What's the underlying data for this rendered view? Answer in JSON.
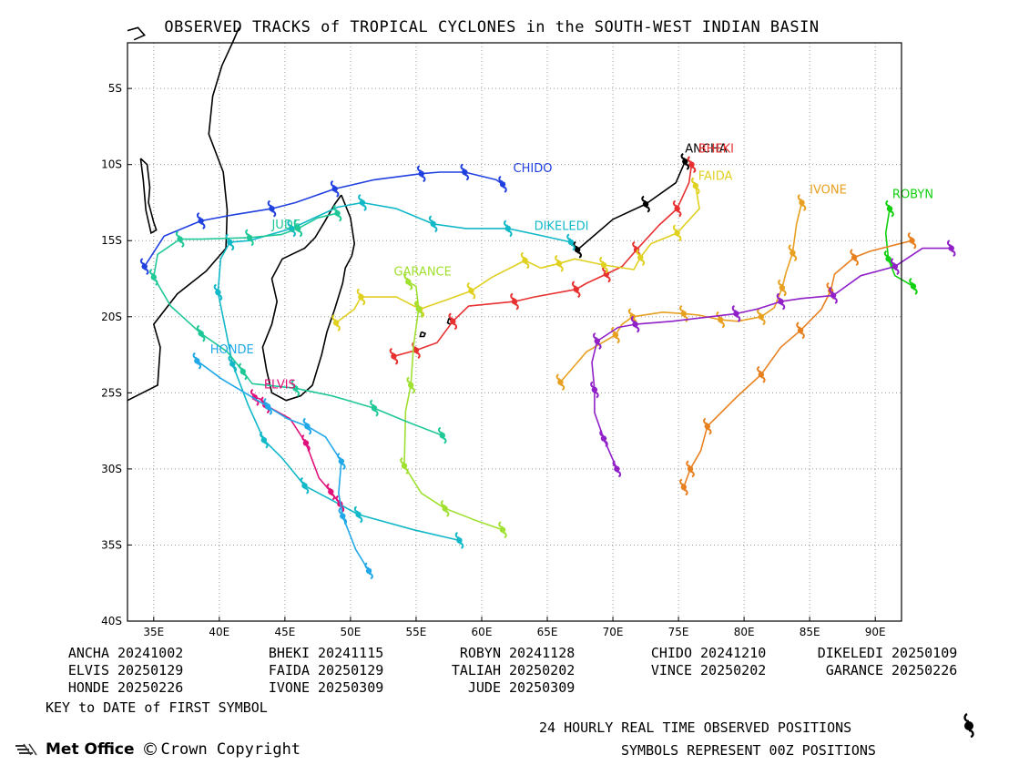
{
  "title": "OBSERVED TRACKS of TROPICAL CYCLONES in the SOUTH-WEST INDIAN BASIN",
  "map": {
    "lon_range": [
      33,
      92
    ],
    "lat_range": [
      -40,
      -2
    ],
    "x_ticks": [
      "35E",
      "40E",
      "45E",
      "50E",
      "55E",
      "60E",
      "65E",
      "70E",
      "75E",
      "80E",
      "85E",
      "90E"
    ],
    "y_ticks": [
      "5S",
      "10S",
      "15S",
      "20S",
      "25S",
      "30S",
      "35S",
      "40S"
    ],
    "grid": true,
    "coastline_color": "#000000"
  },
  "storms": [
    {
      "name": "ANCHA",
      "color": "#000000",
      "label": "ANCHA",
      "track": [
        [
          75.5,
          -9.8
        ],
        [
          74.8,
          -11.2
        ],
        [
          72.5,
          -12.6
        ],
        [
          70.0,
          -13.6
        ],
        [
          67.3,
          -15.6
        ]
      ]
    },
    {
      "name": "BHEKI",
      "color": "#e83030",
      "label": "BHEKI",
      "track": [
        [
          76.0,
          -10.0
        ],
        [
          75.8,
          -11.2
        ],
        [
          74.9,
          -12.9
        ],
        [
          73.5,
          -14.0
        ],
        [
          71.8,
          -15.6
        ],
        [
          70.7,
          -16.7
        ],
        [
          69.5,
          -17.2
        ],
        [
          68.0,
          -17.8
        ],
        [
          67.2,
          -18.2
        ],
        [
          64.0,
          -18.7
        ],
        [
          62.5,
          -19.0
        ],
        [
          59.0,
          -19.3
        ],
        [
          57.8,
          -20.3
        ],
        [
          56.6,
          -21.7
        ],
        [
          55.0,
          -22.2
        ],
        [
          53.3,
          -22.6
        ]
      ]
    },
    {
      "name": "ROBYN",
      "color": "#10d010",
      "label": "ROBYN",
      "track": [
        [
          91.1,
          -12.9
        ],
        [
          90.8,
          -14.5
        ],
        [
          91.0,
          -16.2
        ],
        [
          91.5,
          -17.3
        ],
        [
          92.9,
          -18.0
        ]
      ]
    },
    {
      "name": "CHIDO",
      "color": "#2040e0",
      "label": "CHIDO",
      "track": [
        [
          61.6,
          -11.3
        ],
        [
          61.1,
          -11.0
        ],
        [
          58.7,
          -10.5
        ],
        [
          56.8,
          -10.5
        ],
        [
          55.4,
          -10.6
        ],
        [
          51.8,
          -11.0
        ],
        [
          48.8,
          -11.6
        ],
        [
          45.8,
          -12.5
        ],
        [
          44.0,
          -12.9
        ],
        [
          41.1,
          -13.3
        ],
        [
          38.6,
          -13.7
        ],
        [
          35.8,
          -14.7
        ],
        [
          34.3,
          -16.7
        ]
      ]
    },
    {
      "name": "DIKELEDI",
      "color": "#10b8c8",
      "label": "DIKELEDI",
      "track": [
        [
          66.8,
          -15.1
        ],
        [
          64.2,
          -14.6
        ],
        [
          62.0,
          -14.2
        ],
        [
          58.8,
          -14.2
        ],
        [
          56.3,
          -13.9
        ],
        [
          53.5,
          -12.9
        ],
        [
          50.9,
          -12.5
        ],
        [
          49.0,
          -12.8
        ],
        [
          45.5,
          -14.2
        ],
        [
          42.3,
          -15.0
        ],
        [
          40.8,
          -15.1
        ],
        [
          40.1,
          -16.2
        ],
        [
          39.9,
          -18.4
        ],
        [
          40.4,
          -20.5
        ],
        [
          41.0,
          -23.1
        ],
        [
          42.2,
          -25.8
        ],
        [
          43.4,
          -28.1
        ],
        [
          44.8,
          -29.3
        ],
        [
          46.5,
          -31.1
        ],
        [
          48.9,
          -32.2
        ],
        [
          50.6,
          -33.0
        ],
        [
          54.8,
          -34.0
        ],
        [
          58.3,
          -34.7
        ]
      ]
    },
    {
      "name": "ELVIS",
      "color": "#e0107a",
      "label": "ELVIS",
      "track": [
        [
          42.7,
          -25.3
        ],
        [
          43.1,
          -25.4
        ],
        [
          43.5,
          -25.8
        ],
        [
          45.4,
          -26.7
        ],
        [
          46.6,
          -28.3
        ],
        [
          47.6,
          -30.6
        ],
        [
          48.5,
          -31.5
        ],
        [
          49.2,
          -32.3
        ]
      ]
    },
    {
      "name": "FAIDA",
      "color": "#e0d020",
      "label": "FAIDA",
      "track": [
        [
          76.3,
          -11.4
        ],
        [
          76.6,
          -12.9
        ],
        [
          74.9,
          -14.5
        ],
        [
          72.9,
          -15.2
        ],
        [
          72.1,
          -16.1
        ],
        [
          71.6,
          -16.9
        ],
        [
          69.3,
          -16.6
        ],
        [
          67.1,
          -16.2
        ],
        [
          65.9,
          -16.5
        ],
        [
          64.5,
          -16.8
        ],
        [
          63.3,
          -16.3
        ],
        [
          60.8,
          -17.4
        ],
        [
          59.2,
          -18.3
        ],
        [
          57.3,
          -18.9
        ],
        [
          55.3,
          -19.5
        ],
        [
          53.5,
          -18.7
        ],
        [
          50.8,
          -18.7
        ],
        [
          50.3,
          -19.5
        ],
        [
          48.9,
          -20.4
        ]
      ]
    },
    {
      "name": "TALIAH",
      "color": "#e0d020",
      "label": "",
      "track": []
    },
    {
      "name": "VINCE",
      "color": "#e88020",
      "label": "",
      "track": [
        [
          92.8,
          -15.0
        ],
        [
          89.6,
          -15.7
        ],
        [
          88.4,
          -16.1
        ],
        [
          86.9,
          -17.2
        ],
        [
          86.6,
          -18.3
        ],
        [
          85.9,
          -19.5
        ],
        [
          84.3,
          -20.9
        ],
        [
          82.8,
          -22.0
        ],
        [
          81.3,
          -23.8
        ],
        [
          79.4,
          -25.3
        ],
        [
          77.2,
          -27.2
        ],
        [
          76.7,
          -28.8
        ],
        [
          75.9,
          -30.0
        ],
        [
          75.4,
          -31.2
        ]
      ]
    },
    {
      "name": "GARANCE",
      "color": "#a0e030",
      "label": "GARANCE",
      "track": [
        [
          54.4,
          -17.7
        ],
        [
          55.0,
          -18.0
        ],
        [
          55.2,
          -19.5
        ],
        [
          54.8,
          -21.9
        ],
        [
          54.6,
          -24.5
        ],
        [
          54.2,
          -26.2
        ],
        [
          54.1,
          -29.8
        ],
        [
          55.4,
          -31.6
        ],
        [
          57.2,
          -32.6
        ],
        [
          59.6,
          -33.4
        ],
        [
          61.6,
          -34.0
        ]
      ]
    },
    {
      "name": "HONDE",
      "color": "#20a8e8",
      "label": "HONDE",
      "track": [
        [
          38.3,
          -22.9
        ],
        [
          40.2,
          -24.1
        ],
        [
          43.7,
          -25.9
        ],
        [
          45.2,
          -26.7
        ],
        [
          46.7,
          -27.2
        ],
        [
          48.1,
          -27.9
        ],
        [
          49.3,
          -29.5
        ],
        [
          49.1,
          -31.6
        ],
        [
          49.4,
          -33.1
        ],
        [
          50.4,
          -35.3
        ],
        [
          51.4,
          -36.7
        ]
      ]
    },
    {
      "name": "IVONE",
      "color": "#e8a020",
      "label": "IVONE",
      "track": [
        [
          84.4,
          -12.5
        ],
        [
          84.0,
          -13.9
        ],
        [
          83.7,
          -15.8
        ],
        [
          83.2,
          -17.1
        ],
        [
          82.9,
          -18.1
        ],
        [
          82.3,
          -19.4
        ],
        [
          81.3,
          -20.0
        ],
        [
          79.5,
          -20.3
        ],
        [
          78.2,
          -20.2
        ],
        [
          76.6,
          -19.9
        ],
        [
          75.4,
          -19.8
        ],
        [
          73.8,
          -19.7
        ],
        [
          71.5,
          -20.0
        ],
        [
          70.7,
          -20.5
        ],
        [
          70.2,
          -21.2
        ],
        [
          68.0,
          -22.3
        ],
        [
          66.0,
          -24.3
        ]
      ]
    },
    {
      "name": "JUDE",
      "color": "#20c898",
      "label": "JUDE",
      "track": [
        [
          49.0,
          -13.2
        ],
        [
          47.5,
          -13.5
        ],
        [
          46.0,
          -14.2
        ],
        [
          44.7,
          -14.6
        ],
        [
          42.3,
          -14.8
        ],
        [
          38.6,
          -14.9
        ],
        [
          37.0,
          -14.9
        ],
        [
          35.3,
          -15.9
        ],
        [
          35.0,
          -17.4
        ],
        [
          36.3,
          -19.3
        ],
        [
          38.6,
          -21.1
        ],
        [
          40.6,
          -22.3
        ],
        [
          41.8,
          -23.6
        ],
        [
          42.5,
          -24.4
        ],
        [
          45.8,
          -24.7
        ],
        [
          48.6,
          -25.2
        ],
        [
          51.8,
          -26.0
        ],
        [
          54.3,
          -26.9
        ],
        [
          57.0,
          -27.8
        ]
      ]
    },
    {
      "name": "ROBYN-E",
      "color": "#9020c8",
      "label": "",
      "track": [
        [
          95.8,
          -15.5
        ],
        [
          93.6,
          -15.5
        ],
        [
          91.5,
          -16.7
        ],
        [
          88.9,
          -17.3
        ],
        [
          86.8,
          -18.6
        ],
        [
          84.4,
          -18.8
        ],
        [
          82.8,
          -19.0
        ],
        [
          81.0,
          -19.5
        ],
        [
          79.4,
          -19.8
        ],
        [
          74.5,
          -20.3
        ],
        [
          71.7,
          -20.5
        ],
        [
          70.4,
          -20.7
        ],
        [
          68.8,
          -21.6
        ],
        [
          68.4,
          -23.0
        ],
        [
          68.6,
          -24.8
        ],
        [
          68.6,
          -26.3
        ],
        [
          69.3,
          -28.0
        ],
        [
          70.3,
          -30.0
        ]
      ]
    }
  ],
  "storm_labels_extra": [
    {
      "text": "BHEKI",
      "color": "#e83030"
    }
  ],
  "key": {
    "rows": [
      [
        {
          "name": "ANCHA",
          "date": "20241002"
        },
        {
          "name": "BHEKI",
          "date": "20241115"
        },
        {
          "name": "ROBYN",
          "date": "20241128"
        },
        {
          "name": "CHIDO",
          "date": "20241210"
        },
        {
          "name": "DIKELEDI",
          "date": "20250109"
        }
      ],
      [
        {
          "name": "ELVIS",
          "date": "20250129"
        },
        {
          "name": "FAIDA",
          "date": "20250129"
        },
        {
          "name": "TALIAH",
          "date": "20250202"
        },
        {
          "name": "VINCE",
          "date": "20250202"
        },
        {
          "name": "GARANCE",
          "date": "20250226"
        }
      ],
      [
        {
          "name": "HONDE",
          "date": "20250226"
        },
        {
          "name": "IVONE",
          "date": "20250309"
        },
        {
          "name": "JUDE",
          "date": "20250309"
        }
      ]
    ],
    "note": "KEY to DATE of FIRST SYMBOL"
  },
  "legend": {
    "line1": "24 HOURLY REAL TIME OBSERVED POSITIONS",
    "line2": "SYMBOLS REPRESENT 00Z POSITIONS",
    "icon": "cyclone-symbol-icon"
  },
  "branding": {
    "logo": "Met Office",
    "copyright": "Crown Copyright"
  }
}
